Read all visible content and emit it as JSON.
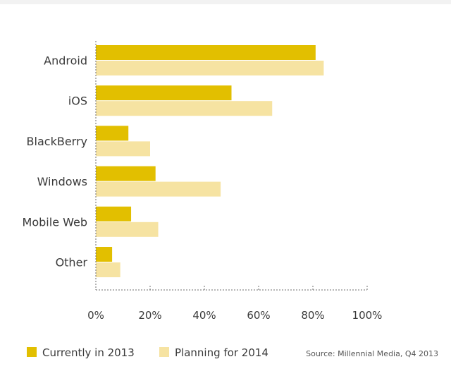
{
  "chart_data": {
    "type": "bar",
    "orientation": "horizontal",
    "categories": [
      "Android",
      "iOS",
      "BlackBerry",
      "Windows",
      "Mobile Web",
      "Other"
    ],
    "series": [
      {
        "name": "Currently in 2013",
        "values": [
          81,
          50,
          12,
          22,
          13,
          6
        ],
        "color": "#e2bf00"
      },
      {
        "name": "Planning for 2014",
        "values": [
          84,
          65,
          20,
          46,
          23,
          9
        ],
        "color": "#f6e3a2"
      }
    ],
    "xticks": [
      "0%",
      "20%",
      "40%",
      "60%",
      "80%",
      "100%"
    ],
    "xlim": [
      0,
      100
    ],
    "grid": false,
    "legend_position": "bottom-left",
    "source": "Source: Millennial Media, Q4 2013"
  }
}
